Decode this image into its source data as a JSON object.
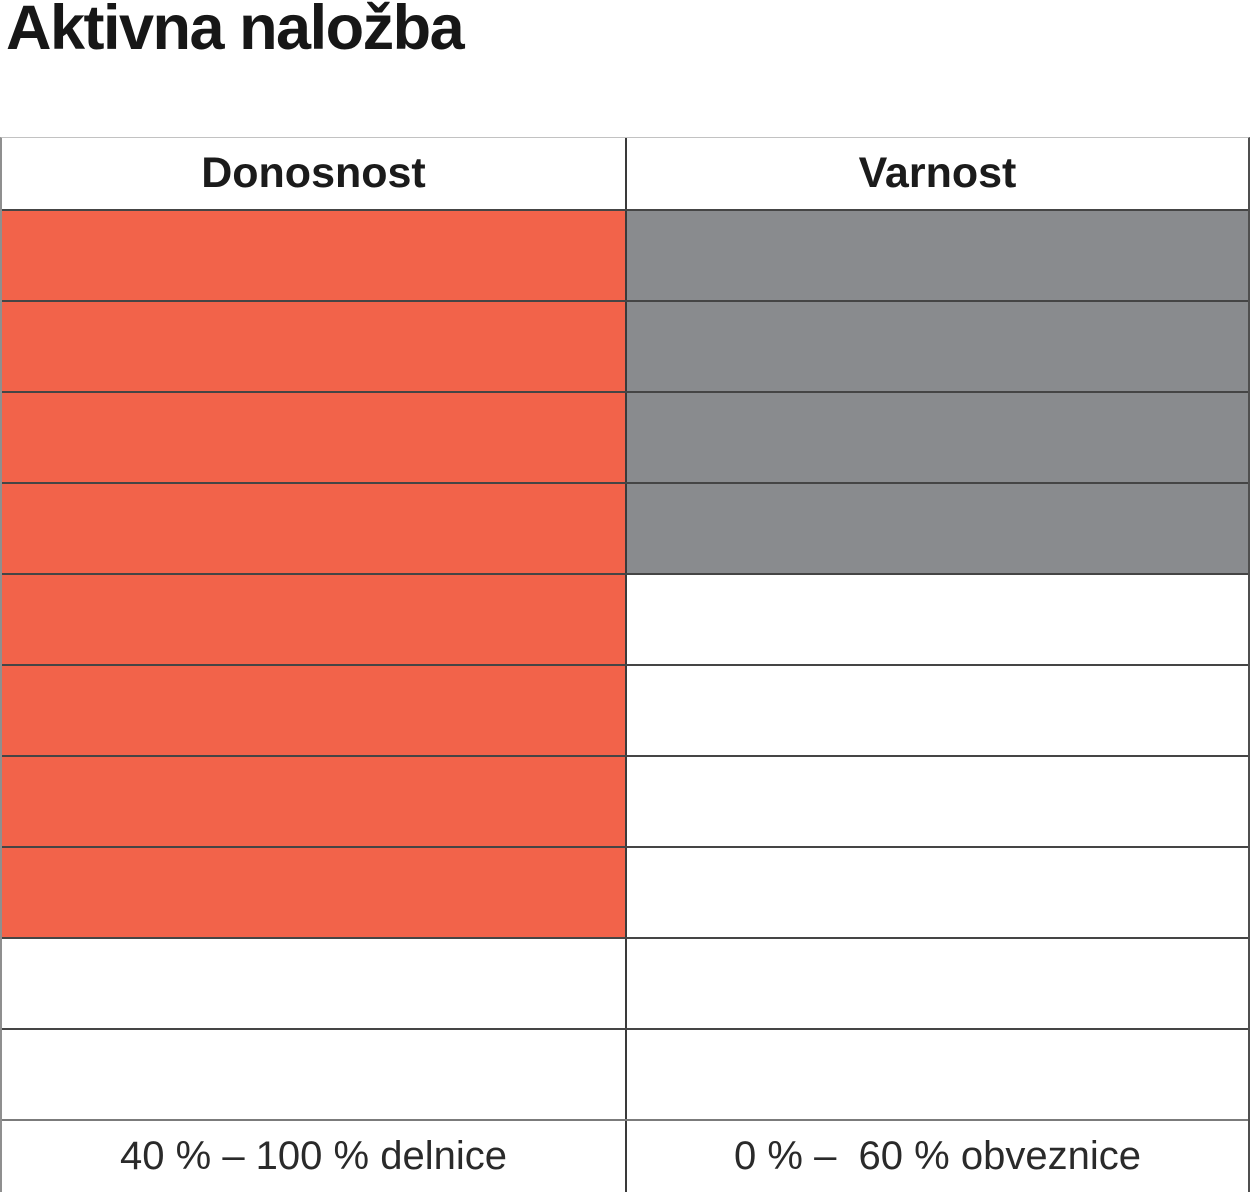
{
  "title": "Aktivna naložba",
  "table": {
    "total_rows": 10,
    "columns": [
      {
        "id": "donosnost",
        "header": "Donosnost",
        "filled_rows": 8,
        "fill_color": "#F2634A",
        "footer": "40 % – 100 % delnice"
      },
      {
        "id": "varnost",
        "header": "Varnost",
        "filled_rows": 4,
        "fill_color": "#898B8E",
        "footer": "0 % –  60 % obveznice"
      }
    ]
  },
  "chart_data": {
    "type": "bar",
    "title": "Aktivna naložba",
    "categories": [
      "Donosnost",
      "Varnost"
    ],
    "values": [
      8,
      4
    ],
    "value_scale": "filled segments out of 10, filling from top downward",
    "ylim": [
      0,
      10
    ],
    "bar_colors": [
      "#F2634A",
      "#898B8E"
    ],
    "annotations": [
      "40 % – 100 % delnice",
      "0 % –  60 % obveznice"
    ],
    "legend": "none",
    "grid": "horizontal segment lines across both columns"
  }
}
